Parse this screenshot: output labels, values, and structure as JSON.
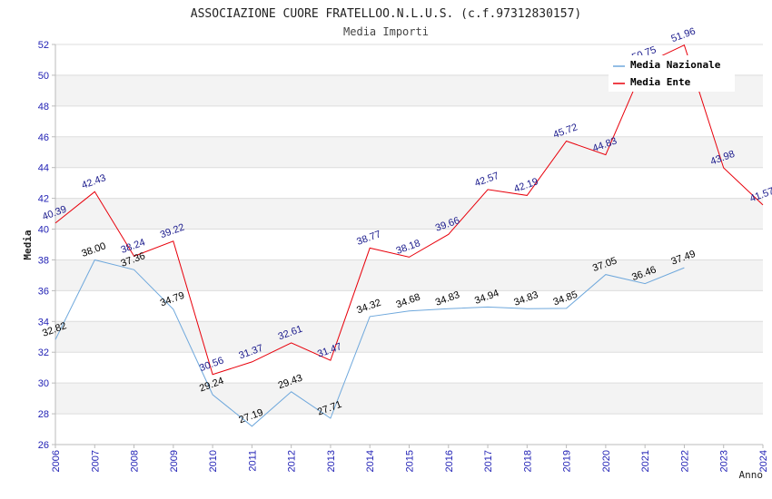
{
  "chart_data": {
    "type": "line",
    "title": "ASSOCIAZIONE CUORE FRATELLOO.N.L.U.S. (c.f.97312830157)",
    "subtitle": "Media Importi",
    "xlabel": "Anno",
    "ylabel": "Media",
    "ylim": [
      26,
      52
    ],
    "yticks": [
      "26",
      "28",
      "30",
      "32",
      "34",
      "36",
      "38",
      "40",
      "42",
      "44",
      "46",
      "48",
      "50",
      "52"
    ],
    "categories": [
      "2006",
      "2007",
      "2008",
      "2009",
      "2010",
      "2011",
      "2012",
      "2013",
      "2014",
      "2015",
      "2016",
      "2017",
      "2018",
      "2019",
      "2020",
      "2021",
      "2022",
      "2023",
      "2024"
    ],
    "grid": "horizontal bands",
    "legend_position": "top-right",
    "series": [
      {
        "name": "Media Nazionale",
        "color": "#6fa8dc",
        "values": [
          32.82,
          38.0,
          37.36,
          34.79,
          29.24,
          27.19,
          29.43,
          27.71,
          34.32,
          34.68,
          34.83,
          34.94,
          34.83,
          34.85,
          37.05,
          36.46,
          37.49,
          null,
          null
        ],
        "labels": [
          "32.82",
          "38.00",
          "37.36",
          "34.79",
          "29.24",
          "27.19",
          "29.43",
          "27.71",
          "34.32",
          "34.68",
          "34.83",
          "34.94",
          "34.83",
          "34.85",
          "37.05",
          "36.46",
          "37.49",
          null,
          null
        ]
      },
      {
        "name": "Media Ente",
        "color": "#e8000b",
        "values": [
          40.39,
          42.43,
          38.24,
          39.22,
          30.56,
          31.37,
          32.61,
          31.47,
          38.77,
          38.18,
          39.66,
          42.57,
          42.19,
          45.72,
          44.83,
          50.75,
          51.96,
          43.98,
          41.57
        ],
        "labels": [
          "40.39",
          "42.43",
          "38.24",
          "39.22",
          "30.56",
          "31.37",
          "32.61",
          "31.47",
          "38.77",
          "38.18",
          "39.66",
          "42.57",
          "42.19",
          "45.72",
          "44.83",
          "50.75",
          "51.96",
          "43.98",
          "41.57"
        ]
      }
    ]
  }
}
